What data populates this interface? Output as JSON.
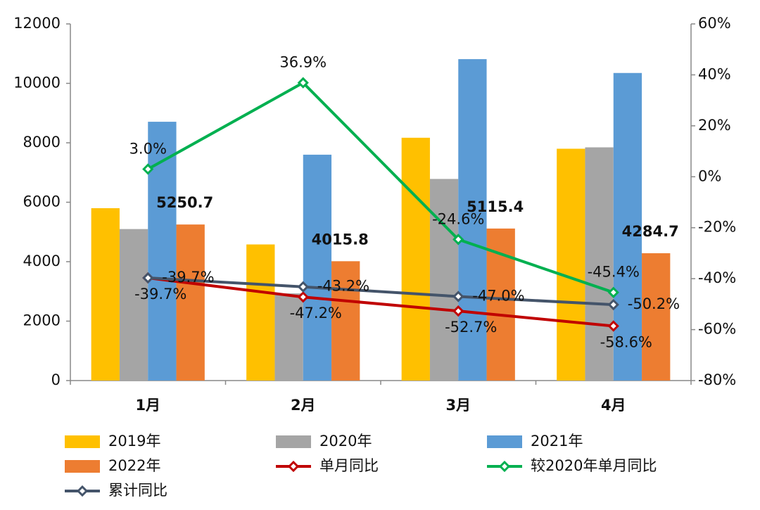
{
  "chart_data": {
    "type": "bar",
    "categories": [
      "1月",
      "2月",
      "3月",
      "4月"
    ],
    "ylim": [
      0,
      12000
    ],
    "yticks": [
      0,
      2000,
      4000,
      6000,
      8000,
      10000,
      12000
    ],
    "y2lim": [
      -80,
      60
    ],
    "y2ticks": [
      {
        "value": -80,
        "label": "-80%"
      },
      {
        "value": -60,
        "label": "-60%"
      },
      {
        "value": -40,
        "label": "-40%"
      },
      {
        "value": -20,
        "label": "-20%"
      },
      {
        "value": 0,
        "label": "0%"
      },
      {
        "value": 20,
        "label": "20%"
      },
      {
        "value": 40,
        "label": "40%"
      },
      {
        "value": 60,
        "label": "60%"
      }
    ],
    "series": [
      {
        "name": "2019年",
        "type": "bar",
        "color": "#ffc000",
        "values": [
          5800,
          4580,
          8170,
          7800
        ]
      },
      {
        "name": "2020年",
        "type": "bar",
        "color": "#a5a5a5",
        "values": [
          5098,
          2933,
          6784,
          7847
        ]
      },
      {
        "name": "2021年",
        "type": "bar",
        "color": "#5b9bd5",
        "values": [
          8708,
          7600,
          10815,
          10349
        ]
      },
      {
        "name": "2022年",
        "type": "bar",
        "color": "#ed7d31",
        "values": [
          5250.7,
          4015.8,
          5115.4,
          4284.7
        ],
        "data_labels": true
      },
      {
        "name": "单月同比",
        "type": "line",
        "axis": "y2",
        "color": "#c00000",
        "values": [
          -39.7,
          -47.2,
          -52.7,
          -58.6
        ],
        "value_labels": [
          "-39.7%",
          "-47.2%",
          "-52.7%",
          "-58.6%"
        ]
      },
      {
        "name": "较2020年单月同比",
        "type": "line",
        "axis": "y2",
        "color": "#00b050",
        "values": [
          3.0,
          36.9,
          -24.6,
          -45.4
        ],
        "value_labels": [
          "3.0%",
          "36.9%",
          "-24.6%",
          "-45.4%"
        ]
      },
      {
        "name": "累计同比",
        "type": "line",
        "axis": "y2",
        "color": "#44546a",
        "values": [
          -39.7,
          -43.2,
          -47.0,
          -50.2
        ],
        "value_labels": [
          "-39.7%",
          "-43.2%",
          "-47.0%",
          "-50.2%"
        ]
      }
    ]
  }
}
